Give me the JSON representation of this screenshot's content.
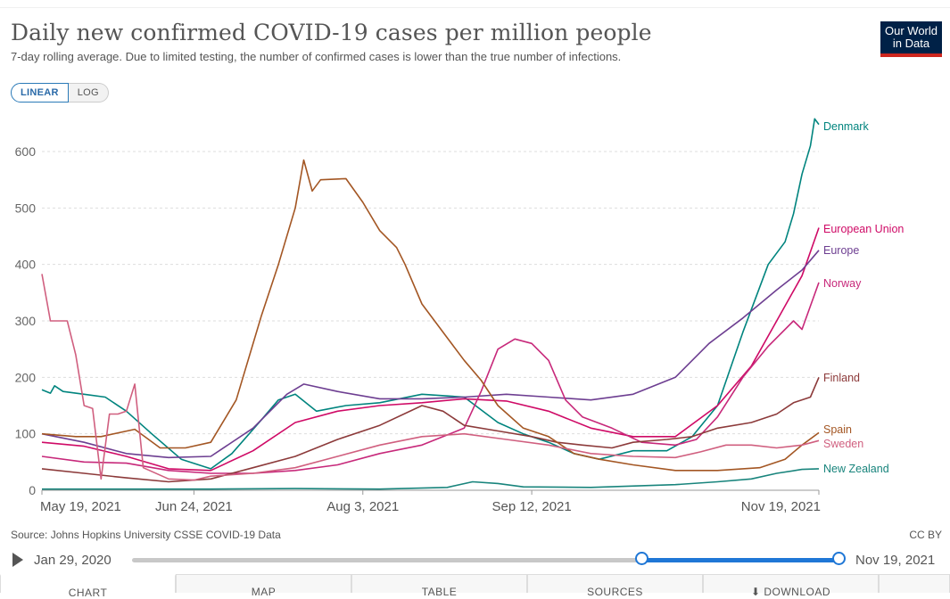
{
  "title": "Daily new confirmed COVID-19 cases per million people",
  "subtitle": "7-day rolling average. Due to limited testing, the number of confirmed cases is lower than the true number of infections.",
  "logo": {
    "line1": "Our World",
    "line2": "in Data"
  },
  "scale_buttons": {
    "linear": "LINEAR",
    "log": "LOG"
  },
  "source": "Source: Johns Hopkins University CSSE COVID-19 Data",
  "license": "CC BY",
  "timeline": {
    "start": "Jan 29, 2020",
    "end": "Nov 19, 2021"
  },
  "tabs": {
    "chart": "CHART",
    "map": "MAP",
    "table": "TABLE",
    "sources": "SOURCES",
    "download": "⬇ DOWNLOAD"
  },
  "chart_data": {
    "type": "line",
    "ylim": [
      0,
      660
    ],
    "yticks": [
      0,
      100,
      200,
      300,
      400,
      500,
      600
    ],
    "xlim": [
      0,
      184
    ],
    "xticks": [
      {
        "day": 0,
        "label": "May 19, 2021"
      },
      {
        "day": 36,
        "label": "Jun 24, 2021"
      },
      {
        "day": 76,
        "label": "Aug 3, 2021"
      },
      {
        "day": 116,
        "label": "Sep 12, 2021"
      },
      {
        "day": 184,
        "label": "Nov 19, 2021"
      }
    ],
    "series": [
      {
        "name": "Denmark",
        "color": "#00847e",
        "points": [
          [
            0,
            178
          ],
          [
            2,
            172
          ],
          [
            3,
            185
          ],
          [
            5,
            175
          ],
          [
            10,
            170
          ],
          [
            15,
            165
          ],
          [
            20,
            140
          ],
          [
            26,
            100
          ],
          [
            33,
            55
          ],
          [
            40,
            38
          ],
          [
            45,
            65
          ],
          [
            52,
            125
          ],
          [
            56,
            160
          ],
          [
            60,
            170
          ],
          [
            65,
            140
          ],
          [
            72,
            150
          ],
          [
            80,
            155
          ],
          [
            90,
            170
          ],
          [
            100,
            165
          ],
          [
            108,
            120
          ],
          [
            114,
            100
          ],
          [
            120,
            85
          ],
          [
            126,
            65
          ],
          [
            132,
            55
          ],
          [
            140,
            70
          ],
          [
            148,
            70
          ],
          [
            154,
            95
          ],
          [
            160,
            150
          ],
          [
            166,
            280
          ],
          [
            172,
            400
          ],
          [
            176,
            440
          ],
          [
            178,
            490
          ],
          [
            180,
            560
          ],
          [
            182,
            610
          ],
          [
            183,
            658
          ],
          [
            184,
            648
          ]
        ]
      },
      {
        "name": "European Union",
        "color": "#cf0a66",
        "points": [
          [
            0,
            85
          ],
          [
            10,
            78
          ],
          [
            20,
            60
          ],
          [
            30,
            38
          ],
          [
            40,
            35
          ],
          [
            50,
            70
          ],
          [
            60,
            120
          ],
          [
            70,
            140
          ],
          [
            80,
            150
          ],
          [
            90,
            155
          ],
          [
            100,
            162
          ],
          [
            110,
            158
          ],
          [
            120,
            140
          ],
          [
            130,
            110
          ],
          [
            140,
            95
          ],
          [
            150,
            95
          ],
          [
            160,
            150
          ],
          [
            168,
            220
          ],
          [
            174,
            300
          ],
          [
            180,
            380
          ],
          [
            184,
            465
          ]
        ]
      },
      {
        "name": "Europe",
        "color": "#6d3e91",
        "points": [
          [
            0,
            100
          ],
          [
            10,
            85
          ],
          [
            20,
            65
          ],
          [
            30,
            58
          ],
          [
            40,
            60
          ],
          [
            50,
            110
          ],
          [
            58,
            170
          ],
          [
            62,
            188
          ],
          [
            70,
            175
          ],
          [
            80,
            162
          ],
          [
            90,
            162
          ],
          [
            100,
            165
          ],
          [
            110,
            170
          ],
          [
            120,
            165
          ],
          [
            130,
            160
          ],
          [
            140,
            170
          ],
          [
            150,
            200
          ],
          [
            158,
            260
          ],
          [
            166,
            305
          ],
          [
            174,
            355
          ],
          [
            180,
            390
          ],
          [
            184,
            425
          ]
        ]
      },
      {
        "name": "Norway",
        "color": "#c7287a",
        "points": [
          [
            0,
            60
          ],
          [
            10,
            50
          ],
          [
            20,
            48
          ],
          [
            30,
            35
          ],
          [
            40,
            30
          ],
          [
            50,
            30
          ],
          [
            60,
            35
          ],
          [
            70,
            45
          ],
          [
            80,
            65
          ],
          [
            90,
            80
          ],
          [
            100,
            110
          ],
          [
            104,
            175
          ],
          [
            108,
            250
          ],
          [
            112,
            268
          ],
          [
            116,
            260
          ],
          [
            120,
            230
          ],
          [
            124,
            160
          ],
          [
            128,
            130
          ],
          [
            135,
            110
          ],
          [
            142,
            85
          ],
          [
            150,
            80
          ],
          [
            155,
            90
          ],
          [
            160,
            130
          ],
          [
            166,
            200
          ],
          [
            172,
            255
          ],
          [
            178,
            300
          ],
          [
            180,
            285
          ],
          [
            184,
            368
          ]
        ]
      },
      {
        "name": "Finland",
        "color": "#8c3a3a",
        "points": [
          [
            0,
            38
          ],
          [
            10,
            30
          ],
          [
            20,
            22
          ],
          [
            30,
            15
          ],
          [
            40,
            20
          ],
          [
            50,
            40
          ],
          [
            60,
            60
          ],
          [
            70,
            90
          ],
          [
            80,
            115
          ],
          [
            90,
            150
          ],
          [
            95,
            140
          ],
          [
            100,
            115
          ],
          [
            108,
            105
          ],
          [
            116,
            95
          ],
          [
            122,
            85
          ],
          [
            128,
            80
          ],
          [
            135,
            75
          ],
          [
            140,
            85
          ],
          [
            148,
            90
          ],
          [
            154,
            95
          ],
          [
            160,
            110
          ],
          [
            168,
            120
          ],
          [
            174,
            135
          ],
          [
            178,
            155
          ],
          [
            182,
            165
          ],
          [
            184,
            200
          ]
        ]
      },
      {
        "name": "Spain",
        "color": "#a35623",
        "points": [
          [
            0,
            100
          ],
          [
            8,
            95
          ],
          [
            14,
            95
          ],
          [
            22,
            108
          ],
          [
            28,
            75
          ],
          [
            34,
            75
          ],
          [
            40,
            85
          ],
          [
            46,
            160
          ],
          [
            52,
            310
          ],
          [
            56,
            400
          ],
          [
            60,
            500
          ],
          [
            62,
            585
          ],
          [
            64,
            530
          ],
          [
            66,
            550
          ],
          [
            72,
            552
          ],
          [
            76,
            510
          ],
          [
            80,
            460
          ],
          [
            84,
            430
          ],
          [
            86,
            400
          ],
          [
            90,
            330
          ],
          [
            96,
            270
          ],
          [
            100,
            230
          ],
          [
            104,
            195
          ],
          [
            108,
            150
          ],
          [
            114,
            110
          ],
          [
            120,
            95
          ],
          [
            126,
            65
          ],
          [
            132,
            55
          ],
          [
            140,
            45
          ],
          [
            150,
            35
          ],
          [
            160,
            35
          ],
          [
            170,
            40
          ],
          [
            176,
            55
          ],
          [
            180,
            80
          ],
          [
            184,
            102
          ]
        ]
      },
      {
        "name": "Sweden",
        "color": "#d05f7f",
        "points": [
          [
            0,
            383
          ],
          [
            2,
            300
          ],
          [
            6,
            300
          ],
          [
            8,
            240
          ],
          [
            10,
            150
          ],
          [
            12,
            145
          ],
          [
            14,
            20
          ],
          [
            16,
            135
          ],
          [
            18,
            135
          ],
          [
            20,
            140
          ],
          [
            22,
            188
          ],
          [
            24,
            40
          ],
          [
            30,
            20
          ],
          [
            36,
            18
          ],
          [
            40,
            25
          ],
          [
            50,
            30
          ],
          [
            60,
            40
          ],
          [
            70,
            60
          ],
          [
            80,
            80
          ],
          [
            90,
            95
          ],
          [
            100,
            100
          ],
          [
            110,
            90
          ],
          [
            120,
            80
          ],
          [
            130,
            65
          ],
          [
            140,
            60
          ],
          [
            150,
            58
          ],
          [
            156,
            68
          ],
          [
            162,
            80
          ],
          [
            168,
            80
          ],
          [
            174,
            75
          ],
          [
            180,
            80
          ],
          [
            184,
            88
          ]
        ]
      },
      {
        "name": "New Zealand",
        "color": "#18847c",
        "points": [
          [
            0,
            2
          ],
          [
            20,
            2
          ],
          [
            40,
            2
          ],
          [
            60,
            3
          ],
          [
            80,
            2
          ],
          [
            96,
            5
          ],
          [
            102,
            15
          ],
          [
            108,
            12
          ],
          [
            114,
            6
          ],
          [
            130,
            5
          ],
          [
            150,
            10
          ],
          [
            160,
            15
          ],
          [
            168,
            20
          ],
          [
            174,
            30
          ],
          [
            180,
            37
          ],
          [
            184,
            38
          ]
        ]
      }
    ]
  }
}
